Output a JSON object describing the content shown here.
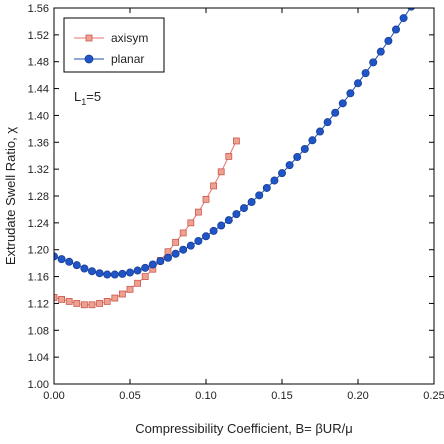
{
  "chart_data": {
    "type": "line",
    "xlabel": "Compressibility Coefficient, B= βUR/μ",
    "ylabel": "Extrudate Swell Ratio, χ",
    "xlim": [
      0,
      0.25
    ],
    "ylim": [
      1.0,
      1.56
    ],
    "xticks": [
      "0.00",
      "0.05",
      "0.10",
      "0.15",
      "0.20",
      "0.25"
    ],
    "xtick_values": [
      0,
      0.05,
      0.1,
      0.15,
      0.2,
      0.25
    ],
    "yticks": [
      "1.00",
      "1.04",
      "1.08",
      "1.12",
      "1.16",
      "1.20",
      "1.24",
      "1.28",
      "1.32",
      "1.36",
      "1.40",
      "1.44",
      "1.48",
      "1.52",
      "1.56"
    ],
    "ytick_values": [
      1.0,
      1.04,
      1.08,
      1.12,
      1.16,
      1.2,
      1.24,
      1.28,
      1.32,
      1.36,
      1.4,
      1.44,
      1.48,
      1.52,
      1.56
    ],
    "grid": false,
    "legend_placement": "top-left",
    "annotation": {
      "base": "L",
      "sub": "1",
      "rest": "=5"
    },
    "series": [
      {
        "name": "axisym",
        "marker": "square",
        "color": "#e8736a",
        "marker_fill": "#f0a090",
        "x": [
          0.0,
          0.005,
          0.01,
          0.015,
          0.02,
          0.025,
          0.03,
          0.035,
          0.04,
          0.045,
          0.05,
          0.055,
          0.06,
          0.065,
          0.07,
          0.075,
          0.08,
          0.085,
          0.09,
          0.095,
          0.1,
          0.105,
          0.11,
          0.115,
          0.12
        ],
        "y": [
          1.129,
          1.126,
          1.123,
          1.12,
          1.118,
          1.118,
          1.12,
          1.123,
          1.128,
          1.134,
          1.141,
          1.15,
          1.16,
          1.171,
          1.184,
          1.197,
          1.211,
          1.225,
          1.24,
          1.256,
          1.275,
          1.295,
          1.316,
          1.339,
          1.362
        ]
      },
      {
        "name": "planar",
        "marker": "circle",
        "color": "#1f4fb0",
        "marker_fill": "#1f55c8",
        "x": [
          0.0,
          0.005,
          0.01,
          0.015,
          0.02,
          0.025,
          0.03,
          0.035,
          0.04,
          0.045,
          0.05,
          0.055,
          0.06,
          0.065,
          0.07,
          0.075,
          0.08,
          0.085,
          0.09,
          0.095,
          0.1,
          0.105,
          0.11,
          0.115,
          0.12,
          0.125,
          0.13,
          0.135,
          0.14,
          0.145,
          0.15,
          0.155,
          0.16,
          0.165,
          0.17,
          0.175,
          0.18,
          0.185,
          0.19,
          0.195,
          0.2,
          0.205,
          0.21,
          0.215,
          0.22,
          0.225,
          0.23,
          0.235
        ],
        "y": [
          1.19,
          1.186,
          1.182,
          1.177,
          1.172,
          1.168,
          1.165,
          1.163,
          1.163,
          1.164,
          1.166,
          1.169,
          1.173,
          1.178,
          1.183,
          1.188,
          1.194,
          1.2,
          1.206,
          1.213,
          1.22,
          1.228,
          1.236,
          1.244,
          1.253,
          1.262,
          1.271,
          1.281,
          1.292,
          1.303,
          1.314,
          1.326,
          1.338,
          1.35,
          1.363,
          1.376,
          1.39,
          1.404,
          1.418,
          1.433,
          1.448,
          1.463,
          1.479,
          1.495,
          1.511,
          1.528,
          1.545,
          1.562
        ]
      }
    ]
  }
}
